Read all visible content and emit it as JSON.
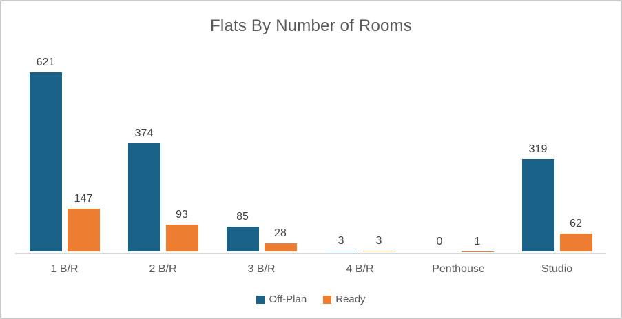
{
  "title": "Flats By Number of Rooms",
  "colors": {
    "off_plan": "#1A6287",
    "ready": "#ED7D31",
    "axis_line": "#D9D9D9",
    "title_text": "#595959",
    "label_text": "#404040",
    "border": "#C9C9C9"
  },
  "legend": {
    "items": [
      {
        "label": "Off-Plan",
        "color": "#1A6287"
      },
      {
        "label": "Ready",
        "color": "#ED7D31"
      }
    ]
  },
  "chart_data": {
    "type": "bar",
    "title": "Flats By Number of Rooms",
    "categories": [
      "1 B/R",
      "2 B/R",
      "3 B/R",
      "4 B/R",
      "Penthouse",
      "Studio"
    ],
    "series": [
      {
        "name": "Off-Plan",
        "color": "#1A6287",
        "values": [
          621,
          374,
          85,
          3,
          0,
          319
        ]
      },
      {
        "name": "Ready",
        "color": "#ED7D31",
        "values": [
          147,
          93,
          28,
          3,
          1,
          62
        ]
      }
    ],
    "data_labels": true,
    "xlabel": "",
    "ylabel": "",
    "ylim": [
      0,
      621
    ],
    "grid": false,
    "legend_position": "bottom"
  }
}
